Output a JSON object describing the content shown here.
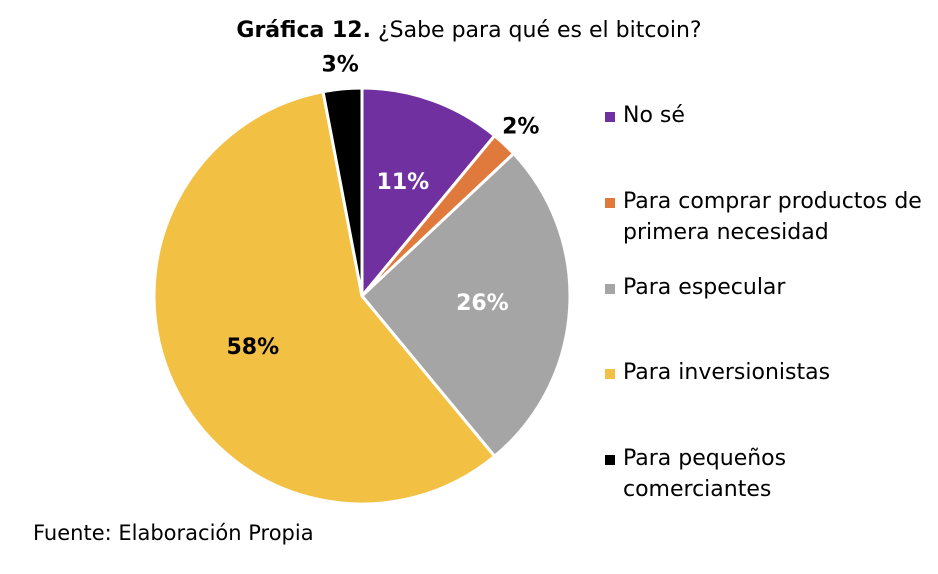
{
  "title": {
    "bold": "Gráfica 12.",
    "text": "¿Sabe para qué es el bitcoin?"
  },
  "source": "Fuente: Elaboración Propia",
  "chart_data": {
    "type": "pie",
    "title": "Gráfica 12. ¿Sabe para qué es el bitcoin?",
    "series": [
      {
        "name": "No sé",
        "value": 11,
        "label": "11%",
        "color": "#7030A0",
        "label_color": "#ffffff"
      },
      {
        "name": "Para comprar productos de primera necesidad",
        "value": 2,
        "label": "2%",
        "color": "#E07A3C",
        "label_color": "#000000"
      },
      {
        "name": "Para especular",
        "value": 26,
        "label": "26%",
        "color": "#A5A5A5",
        "label_color": "#ffffff"
      },
      {
        "name": "Para inversionistas",
        "value": 58,
        "label": "58%",
        "color": "#F2C043",
        "label_color": "#000000"
      },
      {
        "name": "Para pequeños comerciantes",
        "value": 3,
        "label": "3%",
        "color": "#000000",
        "label_color": "#000000"
      }
    ],
    "legend_position": "right"
  }
}
